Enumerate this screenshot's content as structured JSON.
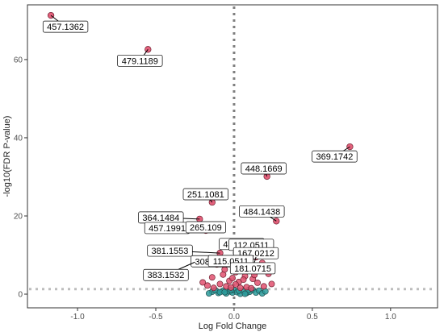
{
  "chart_data": {
    "type": "scatter",
    "title": "",
    "xlabel": "Log Fold Change",
    "ylabel": "-log10(FDR P-value)",
    "xlim": [
      -1.32,
      1.3
    ],
    "ylim": [
      -3.5,
      74
    ],
    "x_ticks": [
      "-1.0",
      "-0.5",
      "0.0",
      "0.5",
      "1.0"
    ],
    "x_tick_values": [
      -1.0,
      -0.5,
      0.0,
      0.5,
      1.0
    ],
    "y_ticks": [
      "0",
      "20",
      "40",
      "60"
    ],
    "y_tick_values": [
      0,
      20,
      40,
      60
    ],
    "grid": false,
    "reference_lines": {
      "vertical_x": 0,
      "horizontal_y": 1.3
    },
    "colors": {
      "significant": "#e0506e",
      "not_significant": "#2a9a9a",
      "reference_line": "#7f7f7f"
    },
    "labeled_points": [
      {
        "label": "457.1362",
        "x": -1.17,
        "y": 71.3
      },
      {
        "label": "479.1189",
        "x": -0.55,
        "y": 62.6
      },
      {
        "label": "369.1742",
        "x": 0.74,
        "y": 37.7
      },
      {
        "label": "448.1669",
        "x": 0.21,
        "y": 30.1
      },
      {
        "label": "251.1081",
        "x": -0.14,
        "y": 23.5
      },
      {
        "label": "364.1484",
        "x": -0.22,
        "y": 19.2
      },
      {
        "label": "484.1438",
        "x": 0.27,
        "y": 18.7
      },
      {
        "label": "457.1991",
        "x": -0.18,
        "y": 16.3
      },
      {
        "label": "265.109",
        "x": -0.16,
        "y": 16.7
      },
      {
        "label": "381.1553",
        "x": -0.09,
        "y": 10.5
      },
      {
        "label": "462.0555",
        "x": 0.1,
        "y": 12.2
      },
      {
        "label": "112.0511",
        "x": 0.13,
        "y": 12.0
      },
      {
        "label": "167.0212",
        "x": 0.16,
        "y": 11.3
      },
      {
        "label": "308.0981",
        "x": -0.09,
        "y": 8.4
      },
      {
        "label": "115.0511",
        "x": 0.02,
        "y": 8.9
      },
      {
        "label": "181.0715",
        "x": 0.14,
        "y": 9.5
      },
      {
        "label": "383.1532",
        "x": -0.25,
        "y": 8.2
      }
    ],
    "other_significant_points": [
      {
        "x": -0.04,
        "y": 9.0
      },
      {
        "x": 0.05,
        "y": 7.2
      },
      {
        "x": 0.09,
        "y": 6.0
      },
      {
        "x": -0.11,
        "y": 7.6
      },
      {
        "x": 0.18,
        "y": 8.0
      },
      {
        "x": -0.07,
        "y": 5.0
      },
      {
        "x": 0.07,
        "y": 4.6
      },
      {
        "x": -0.14,
        "y": 4.3
      },
      {
        "x": 0.12,
        "y": 3.9
      },
      {
        "x": 0.22,
        "y": 5.2
      },
      {
        "x": -0.03,
        "y": 3.4
      },
      {
        "x": 0.03,
        "y": 3.1
      },
      {
        "x": -0.09,
        "y": 2.6
      },
      {
        "x": 0.15,
        "y": 2.9
      },
      {
        "x": -0.17,
        "y": 2.2
      },
      {
        "x": 0.19,
        "y": 2.0
      },
      {
        "x": 0.01,
        "y": 2.5
      },
      {
        "x": -0.05,
        "y": 2.0
      },
      {
        "x": 0.08,
        "y": 1.8
      },
      {
        "x": -0.13,
        "y": 1.6
      },
      {
        "x": 0.11,
        "y": 1.5
      },
      {
        "x": -0.02,
        "y": 1.7
      },
      {
        "x": 0.04,
        "y": 1.6
      },
      {
        "x": -0.2,
        "y": 3.0
      },
      {
        "x": 0.24,
        "y": 2.6
      },
      {
        "x": -0.06,
        "y": 6.3
      },
      {
        "x": 0.01,
        "y": 5.6
      },
      {
        "x": 0.13,
        "y": 4.9
      },
      {
        "x": -0.01,
        "y": 4.1
      },
      {
        "x": 0.06,
        "y": 3.7
      }
    ],
    "not_significant_points": [
      {
        "x": -0.14,
        "y": 0.6
      },
      {
        "x": -0.1,
        "y": 0.3
      },
      {
        "x": -0.07,
        "y": 0.9
      },
      {
        "x": -0.05,
        "y": 0.2
      },
      {
        "x": -0.03,
        "y": 0.7
      },
      {
        "x": -0.01,
        "y": 0.4
      },
      {
        "x": 0.0,
        "y": 1.0
      },
      {
        "x": 0.02,
        "y": 0.5
      },
      {
        "x": 0.04,
        "y": 0.1
      },
      {
        "x": 0.06,
        "y": 0.8
      },
      {
        "x": 0.08,
        "y": 0.3
      },
      {
        "x": 0.1,
        "y": 0.6
      },
      {
        "x": 0.12,
        "y": 1.1
      },
      {
        "x": 0.14,
        "y": 0.4
      },
      {
        "x": 0.16,
        "y": 0.9
      },
      {
        "x": -0.12,
        "y": 1.0
      },
      {
        "x": -0.09,
        "y": 0.5
      },
      {
        "x": -0.16,
        "y": 0.2
      },
      {
        "x": 0.18,
        "y": 0.2
      },
      {
        "x": -0.02,
        "y": 1.1
      },
      {
        "x": 0.03,
        "y": 0.9
      },
      {
        "x": 0.09,
        "y": 1.0
      },
      {
        "x": -0.06,
        "y": 0.5
      },
      {
        "x": 0.07,
        "y": 0.1
      },
      {
        "x": 0.2,
        "y": 0.7
      }
    ]
  }
}
